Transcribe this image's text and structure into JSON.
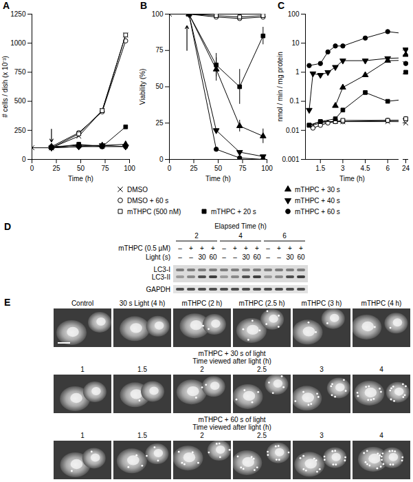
{
  "chart_data": [
    {
      "type": "line",
      "title": "A",
      "xlabel": "Time (h)",
      "ylabel": "# cells / dish (x 10⁻³)",
      "x": [
        0,
        20,
        48,
        72,
        96
      ],
      "xlim": [
        0,
        100
      ],
      "xticks": [
        0,
        25,
        50,
        75,
        100
      ],
      "ylim": [
        0,
        1250
      ],
      "yticks": [
        0,
        250,
        500,
        750,
        1000,
        1250
      ],
      "arrow": {
        "x": 20,
        "from": 260,
        "to": 150
      },
      "series": [
        {
          "name": "DMSO",
          "color": "#000000",
          "marker": "x",
          "values": [
            100,
            100,
            200,
            420,
            1070
          ]
        },
        {
          "name": "DMSO + 60 s",
          "color": "#000000",
          "marker": "circle-open",
          "values": [
            null,
            110,
            230,
            410,
            1020
          ]
        },
        {
          "name": "mTHPC (500 nM)",
          "color": "#000000",
          "marker": "square-open",
          "values": [
            null,
            100,
            220,
            420,
            1070
          ]
        },
        {
          "name": "mTHPC + 20 s",
          "color": "#000000",
          "marker": "square",
          "values": [
            null,
            100,
            130,
            110,
            280
          ]
        },
        {
          "name": "mTHPC + 30 s",
          "color": "#000000",
          "marker": "triangle-up",
          "values": [
            null,
            110,
            120,
            120,
            130
          ]
        },
        {
          "name": "mTHPC + 40 s",
          "color": "#000000",
          "marker": "triangle-down",
          "values": [
            null,
            100,
            110,
            120,
            110
          ]
        },
        {
          "name": "mTHPC + 60 s",
          "color": "#000000",
          "marker": "circle",
          "values": [
            null,
            100,
            110,
            110,
            110
          ]
        }
      ]
    },
    {
      "type": "line",
      "title": "B",
      "xlabel": "Time (h)",
      "ylabel": "Viability (%)",
      "x": [
        0,
        20,
        48,
        72,
        96
      ],
      "xlim": [
        0,
        100
      ],
      "xticks": [
        0,
        25,
        50,
        75,
        100
      ],
      "ylim": [
        0,
        100
      ],
      "yticks": [
        0,
        25,
        50,
        75,
        100
      ],
      "arrow": {
        "x": 18,
        "from": 75,
        "to": 92
      },
      "series": [
        {
          "name": "DMSO",
          "color": "#000000",
          "marker": "x",
          "values": [
            100,
            100,
            100,
            100,
            100
          ]
        },
        {
          "name": "DMSO + 60 s",
          "color": "#000000",
          "marker": "circle-open",
          "values": [
            null,
            100,
            98,
            97,
            98
          ]
        },
        {
          "name": "mTHPC (500 nM)",
          "color": "#000000",
          "marker": "square-open",
          "values": [
            null,
            100,
            99,
            98,
            99
          ]
        },
        {
          "name": "mTHPC + 20 s",
          "color": "#000000",
          "marker": "square",
          "values": [
            null,
            100,
            65,
            50,
            85
          ],
          "errors": [
            null,
            null,
            8,
            12,
            6
          ]
        },
        {
          "name": "mTHPC + 30 s",
          "color": "#000000",
          "marker": "triangle-up",
          "values": [
            null,
            100,
            62,
            23,
            16
          ],
          "errors": [
            null,
            null,
            8,
            4,
            5
          ]
        },
        {
          "name": "mTHPC + 40 s",
          "color": "#000000",
          "marker": "triangle-down",
          "values": [
            null,
            100,
            20,
            5,
            2
          ]
        },
        {
          "name": "mTHPC + 60 s",
          "color": "#000000",
          "marker": "circle",
          "values": [
            null,
            100,
            7,
            1,
            0
          ]
        }
      ]
    },
    {
      "type": "line",
      "title": "C",
      "xlabel": "Time (h)",
      "ylabel": "nmol / min / mg protein",
      "log": "y",
      "x": [
        0.75,
        1,
        1.5,
        2,
        2.5,
        3,
        4.5,
        6,
        24
      ],
      "xlim": [
        0.5,
        25
      ],
      "xticks": [
        1.5,
        3,
        4.5,
        6,
        24
      ],
      "ylim": [
        0.001,
        100
      ],
      "yticks": [
        0.001,
        0.01,
        0.1,
        1,
        10,
        100
      ],
      "series": [
        {
          "name": "DMSO",
          "color": "#000000",
          "marker": "x",
          "values": [
            null,
            0.015,
            0.018,
            null,
            0.02,
            0.02,
            null,
            0.02,
            0.018
          ]
        },
        {
          "name": "DMSO + 60 s",
          "color": "#000000",
          "marker": "circle-open",
          "values": [
            null,
            0.012,
            0.015,
            0.018,
            0.02,
            0.02,
            null,
            0.022,
            0.025
          ]
        },
        {
          "name": "mTHPC (500 nM)",
          "color": "#000000",
          "marker": "square-open",
          "values": [
            0.015,
            null,
            0.02,
            null,
            0.02,
            0.022,
            null,
            0.022,
            0.025
          ]
        },
        {
          "name": "mTHPC + 20 s",
          "color": "#000000",
          "marker": "square",
          "values": [
            0.015,
            null,
            0.02,
            null,
            0.025,
            0.05,
            0.2,
            0.1,
            1
          ]
        },
        {
          "name": "mTHPC + 30 s",
          "color": "#000000",
          "marker": "triangle-up",
          "values": [
            null,
            null,
            null,
            null,
            0.07,
            0.3,
            0.8,
            2.5,
            4
          ]
        },
        {
          "name": "mTHPC + 40 s",
          "color": "#000000",
          "marker": "triangle-down",
          "values": [
            0.05,
            0.9,
            0.8,
            1,
            1.5,
            2.5,
            2.5,
            3,
            6
          ]
        },
        {
          "name": "mTHPC + 60 s",
          "color": "#000000",
          "marker": "circle",
          "values": [
            1.7,
            null,
            2,
            5,
            8,
            8,
            15,
            25,
            2
          ]
        }
      ]
    }
  ],
  "blot": {
    "title": "D",
    "header": "Elapsed Time (h)",
    "groups": [
      "2",
      "4",
      "6"
    ],
    "conditions": [
      {
        "label": "mTHPC (0.5 µM)",
        "cells": [
          "–",
          "+",
          "+",
          "+"
        ]
      },
      {
        "label": "Light (s)",
        "cells": [
          "–",
          "–",
          "30",
          "60"
        ]
      }
    ],
    "bands": [
      "LC3-I",
      "LC3-II",
      "GAPDH"
    ]
  },
  "micrographs": {
    "title": "E",
    "rows": [
      {
        "labels": [
          "Control",
          "30 s Light (4 h)",
          "mTHPC (2 h)",
          "mTHPC (2.5 h)",
          "mTHPC (3 h)",
          "mTHPC (4 h)"
        ]
      },
      {
        "title": "mTHPC + 30 s of light",
        "subtitle": "Time viewed after light (h)",
        "labels": [
          "1",
          "1.5",
          "2",
          "2.5",
          "3",
          "4"
        ]
      },
      {
        "title": "mTHPC + 60 s of light",
        "subtitle": "Time viewed after light (h)",
        "labels": [
          "1",
          "1.5",
          "2",
          "2.5",
          "3",
          "4"
        ]
      }
    ]
  }
}
